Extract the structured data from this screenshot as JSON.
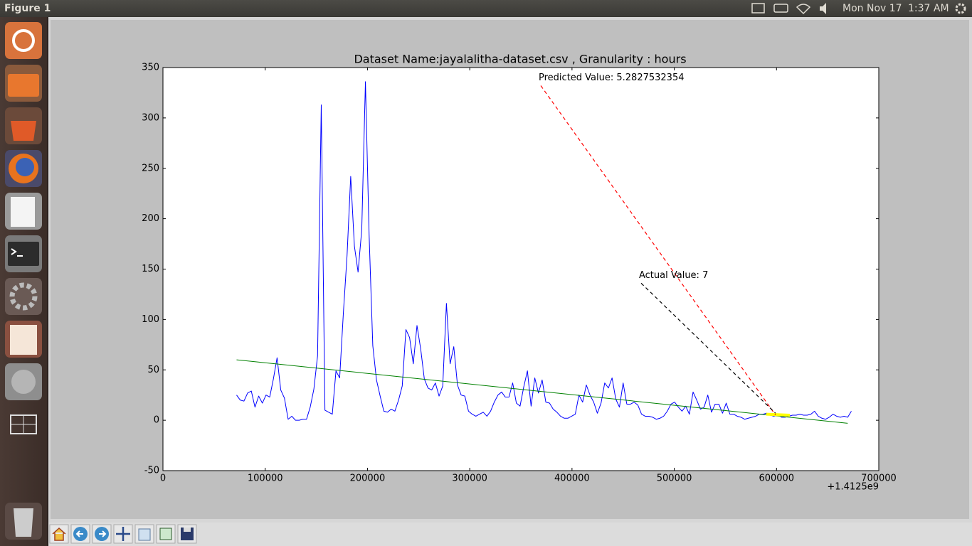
{
  "window": {
    "title": "Figure 1"
  },
  "panel": {
    "date": "Mon Nov 17",
    "time": "1:37 AM"
  },
  "chart_data": {
    "type": "line",
    "title": "Dataset Name:jayalalitha-dataset.csv , Granularity : hours",
    "xlim": [
      0,
      700000
    ],
    "xticks": [
      0,
      100000,
      200000,
      300000,
      400000,
      500000,
      600000,
      700000
    ],
    "x_offset_label": "+1.4125e9",
    "ylim": [
      -50,
      350
    ],
    "yticks": [
      -50,
      0,
      50,
      100,
      150,
      200,
      250,
      300,
      350
    ],
    "series": [
      {
        "color": "#0000ff",
        "linewidth": 1,
        "x": [
          72000,
          75600,
          79200,
          82800,
          86400,
          90000,
          93600,
          97200,
          100800,
          104400,
          108000,
          111600,
          115200,
          118800,
          122400,
          126000,
          129600,
          133200,
          136800,
          140400,
          144000,
          147600,
          151200,
          154800,
          158400,
          162000,
          165600,
          169200,
          172800,
          176400,
          180000,
          183600,
          187200,
          190800,
          194400,
          198000,
          201600,
          205200,
          208800,
          212400,
          216000,
          219600,
          223200,
          226800,
          230400,
          234000,
          237600,
          241200,
          244800,
          248400,
          252000,
          255600,
          259200,
          262800,
          266400,
          270000,
          273600,
          277200,
          280800,
          284400,
          288000,
          291600,
          295200,
          298800,
          302400,
          306000,
          309600,
          313200,
          316800,
          320400,
          324000,
          327600,
          331200,
          334800,
          338400,
          342000,
          345600,
          349200,
          352800,
          356400,
          360000,
          363600,
          367200,
          370800,
          374400,
          378000,
          381600,
          385200,
          388800,
          392400,
          396000,
          399600,
          403200,
          406800,
          410400,
          414000,
          417600,
          421200,
          424800,
          428400,
          432000,
          435600,
          439200,
          442800,
          446400,
          450000,
          453600,
          457200,
          460800,
          464400,
          468000,
          471600,
          475200,
          478800,
          482400,
          486000,
          489600,
          493200,
          496800,
          500400,
          504000,
          507600,
          511200,
          514800,
          518400,
          522000,
          525600,
          529200,
          532800,
          536400,
          540000,
          543600,
          547200,
          550800,
          554400,
          558000,
          561600,
          565200,
          568800,
          572400,
          576000,
          579600,
          583200,
          586800,
          590400,
          594000,
          597600,
          601200,
          604800,
          608400,
          612000,
          615600,
          619200,
          622800,
          626400,
          630000,
          633600,
          637200,
          640800,
          644400,
          648000,
          651600,
          655200,
          658800,
          662400,
          666000,
          669600,
          673200
        ],
        "values": [
          25,
          20,
          19,
          27,
          29,
          13,
          24,
          17,
          25,
          23,
          41,
          62,
          30,
          22,
          1,
          4,
          0,
          0,
          1,
          1,
          13,
          31,
          64,
          313,
          10,
          8,
          6,
          49,
          42,
          106,
          163,
          242,
          173,
          147,
          189,
          336,
          184,
          74,
          40,
          24,
          9,
          8,
          11,
          9,
          20,
          34,
          90,
          82,
          56,
          94,
          71,
          41,
          32,
          30,
          37,
          24,
          34,
          116,
          56,
          73,
          35,
          25,
          24,
          9,
          6,
          4,
          6,
          8,
          4,
          9,
          18,
          25,
          28,
          23,
          23,
          37,
          17,
          14,
          33,
          49,
          14,
          42,
          27,
          40,
          18,
          17,
          11,
          8,
          4,
          2,
          2,
          4,
          6,
          25,
          18,
          35,
          25,
          18,
          7,
          17,
          37,
          32,
          42,
          21,
          13,
          37,
          16,
          16,
          18,
          15,
          6,
          4,
          4,
          3,
          1,
          2,
          4,
          9,
          16,
          18,
          13,
          9,
          14,
          6,
          28,
          20,
          11,
          13,
          25,
          8,
          16,
          16,
          7,
          17,
          6,
          6,
          4,
          3,
          1,
          2,
          3,
          4,
          6,
          6,
          7,
          5,
          4,
          6,
          3,
          3,
          4,
          5,
          5,
          6,
          5,
          5,
          6,
          9,
          4,
          2,
          1,
          3,
          6,
          4,
          3,
          4,
          3,
          9
        ]
      },
      {
        "color": "#008000",
        "linewidth": 1,
        "x": [
          72000,
          669600
        ],
        "values": [
          60,
          -3
        ]
      },
      {
        "color": "#ffff00",
        "linewidth": 4,
        "x": [
          590000,
          613000
        ],
        "values": [
          6,
          5
        ]
      }
    ],
    "annotations": [
      {
        "text": "Predicted Value: 5.2827532354",
        "xy": [
          599000,
          5.2827532354
        ],
        "xytext": [
          369500,
          332
        ],
        "color": "#ff0000"
      },
      {
        "text": "Actual Value: 7",
        "xy": [
          599000,
          7
        ],
        "xytext": [
          467600,
          136
        ],
        "color": "#000000"
      }
    ]
  }
}
